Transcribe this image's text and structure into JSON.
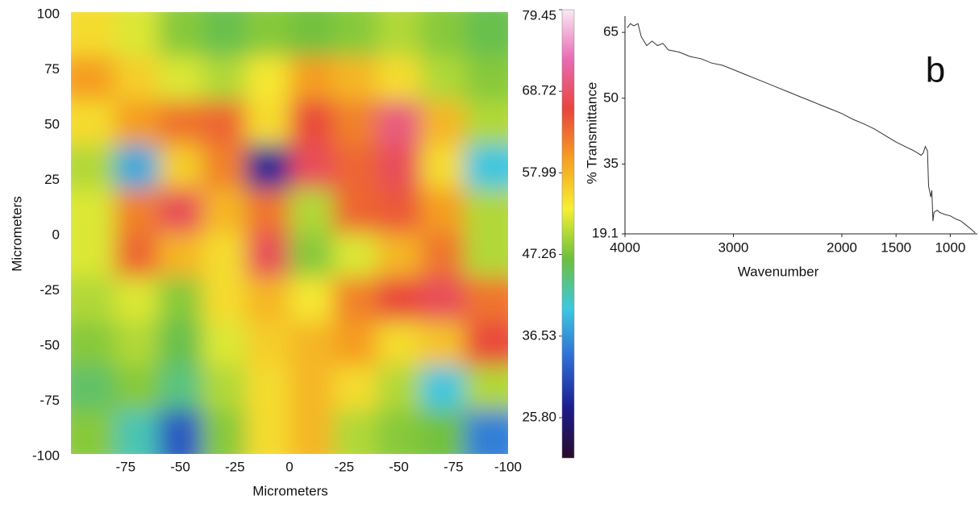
{
  "chart_data": [
    {
      "type": "heatmap",
      "xlabel": "Micrometers",
      "ylabel": "Micrometers",
      "xlim": [
        -100,
        100
      ],
      "ylim": [
        -100,
        100
      ],
      "xticks": [
        -75,
        -50,
        -25,
        0,
        {
          "value": 25,
          "label": "-25"
        },
        {
          "value": 50,
          "label": "-50"
        },
        {
          "value": 75,
          "label": "-75"
        },
        {
          "value": 100,
          "label": "-100"
        }
      ],
      "yticks": [
        100,
        75,
        50,
        25,
        0,
        -25,
        -50,
        -75,
        -100
      ],
      "z": [
        [
          55,
          52,
          48,
          46,
          48,
          47,
          48,
          50,
          48,
          46
        ],
        [
          60,
          56,
          52,
          50,
          54,
          60,
          58,
          55,
          50,
          48
        ],
        [
          55,
          60,
          63,
          64,
          55,
          66,
          62,
          70,
          58,
          50
        ],
        [
          50,
          38,
          56,
          62,
          28,
          68,
          64,
          68,
          55,
          40
        ],
        [
          52,
          62,
          68,
          58,
          63,
          50,
          64,
          65,
          60,
          50
        ],
        [
          52,
          64,
          58,
          55,
          68,
          48,
          52,
          58,
          63,
          50
        ],
        [
          50,
          52,
          48,
          55,
          58,
          54,
          62,
          66,
          68,
          63
        ],
        [
          48,
          50,
          46,
          52,
          56,
          58,
          60,
          55,
          57,
          66
        ],
        [
          45,
          48,
          44,
          50,
          55,
          58,
          55,
          50,
          40,
          50
        ],
        [
          48,
          42,
          32,
          48,
          55,
          58,
          50,
          48,
          47,
          35
        ]
      ],
      "colormap": [
        "#2a0a2a",
        "#1c1c8c",
        "#2f6bd4",
        "#3cc8e0",
        "#6cbf3c",
        "#f5f032",
        "#f5a023",
        "#e8453c",
        "#e86ab4",
        "#fbe8f4"
      ],
      "colorbar": {
        "label": "% Transmittance",
        "lim": [
          20.5,
          79.45
        ],
        "ticks": [
          {
            "value": 25.8,
            "label": "25.80"
          },
          36.53,
          47.26,
          57.99,
          68.72,
          79.45
        ]
      }
    },
    {
      "type": "line",
      "annotation": "b",
      "xlabel": "Wavenumber",
      "ylabel": "% Transmittance",
      "xlim": [
        4000,
        750
      ],
      "ylim": [
        19.1,
        68.7
      ],
      "xticks": [
        4000,
        3000,
        2000,
        1500,
        1000
      ],
      "yticks": [
        19.1,
        35,
        50,
        65
      ],
      "color": "#333333",
      "x": [
        3980,
        3950,
        3920,
        3880,
        3850,
        3800,
        3750,
        3700,
        3650,
        3600,
        3500,
        3400,
        3300,
        3200,
        3100,
        3000,
        2900,
        2800,
        2700,
        2600,
        2500,
        2400,
        2300,
        2200,
        2100,
        2000,
        1900,
        1800,
        1700,
        1600,
        1500,
        1400,
        1350,
        1300,
        1270,
        1250,
        1230,
        1210,
        1200,
        1180,
        1170,
        1160,
        1150,
        1120,
        1100,
        1050,
        1000,
        950,
        900,
        850,
        800,
        770
      ],
      "values": [
        66,
        67,
        66.5,
        67,
        64,
        62,
        63,
        62,
        62.5,
        61,
        60.5,
        59.5,
        59,
        58,
        57.5,
        56.5,
        55.5,
        54.5,
        53.5,
        52.5,
        51.5,
        50.5,
        49.5,
        48.5,
        47.5,
        46.5,
        45.2,
        44.2,
        43,
        41.5,
        40,
        38.8,
        38.2,
        37.5,
        37,
        37.5,
        39,
        38,
        30,
        27.5,
        29,
        22,
        24,
        24.5,
        24,
        23.5,
        23.2,
        22.5,
        22,
        21,
        20,
        19.3
      ]
    }
  ]
}
